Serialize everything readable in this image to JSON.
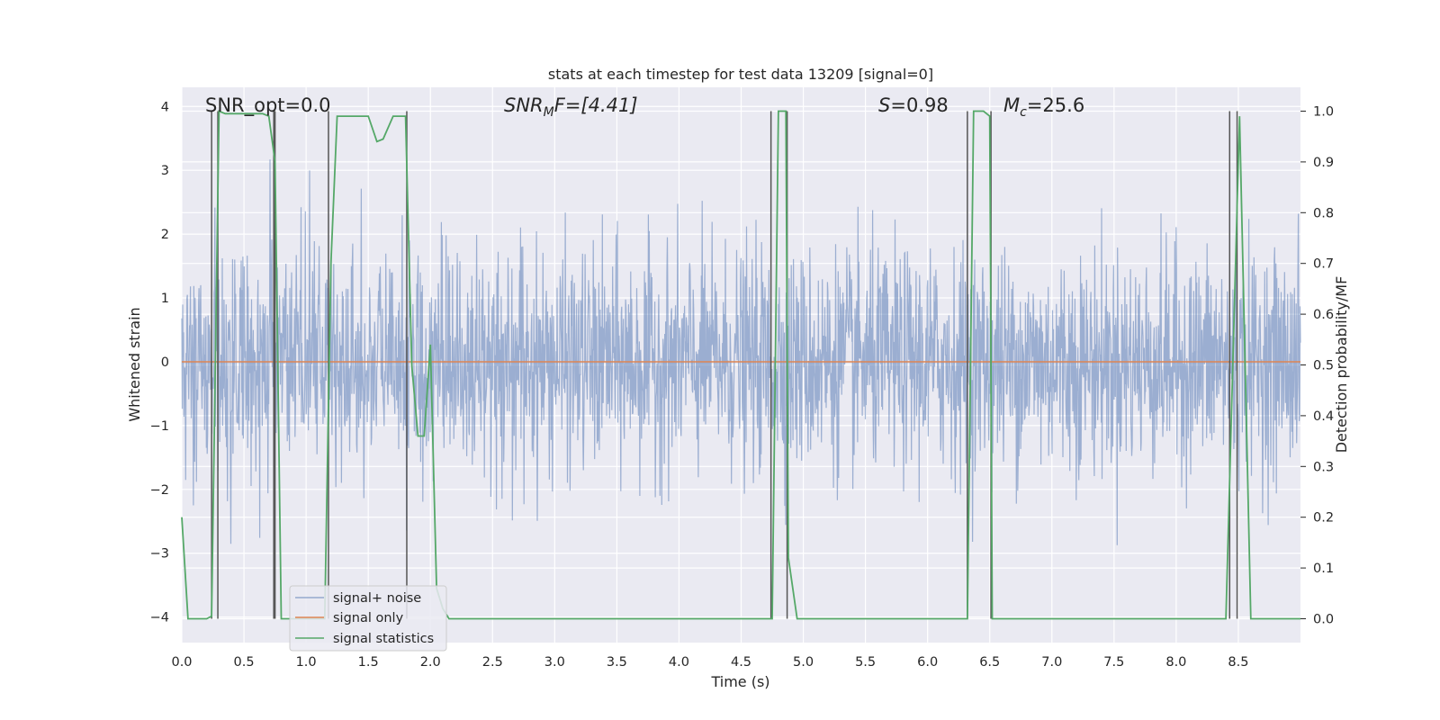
{
  "chart_data": {
    "type": "line",
    "title": "stats at each timestep for test data 13209 [signal=0]",
    "xlabel": "Time (s)",
    "ylabel": "Whitened strain",
    "y2label": "Detection probability/MF",
    "xlim": [
      0,
      9.0
    ],
    "ylim": [
      -4.4,
      4.3
    ],
    "y2lim": [
      -0.047,
      1.047
    ],
    "xticks": [
      0,
      0.5,
      1.0,
      1.5,
      2.0,
      2.5,
      3.0,
      3.5,
      4.0,
      4.5,
      5.0,
      5.5,
      6.0,
      6.5,
      7.0,
      7.5,
      8.0,
      8.5
    ],
    "xtick_labels": [
      "0.0",
      "0.5",
      "1.0",
      "1.5",
      "2.0",
      "2.5",
      "3.0",
      "3.5",
      "4.0",
      "4.5",
      "5.0",
      "5.5",
      "6.0",
      "6.5",
      "7.0",
      "7.5",
      "8.0",
      "8.5"
    ],
    "yticks": [
      -4,
      -3,
      -2,
      -1,
      0,
      1,
      2,
      3,
      4
    ],
    "ytick_labels": [
      "−4",
      "−3",
      "−2",
      "−1",
      "0",
      "1",
      "2",
      "3",
      "4"
    ],
    "y2ticks": [
      0.0,
      0.1,
      0.2,
      0.3,
      0.4,
      0.5,
      0.6,
      0.7,
      0.8,
      0.9,
      1.0
    ],
    "y2tick_labels": [
      "0.0",
      "0.1",
      "0.2",
      "0.3",
      "0.4",
      "0.5",
      "0.6",
      "0.7",
      "0.8",
      "0.9",
      "1.0"
    ],
    "grid": true,
    "legend_position": "lower-left",
    "annotations": [
      {
        "text": "SNR_opt=0.0",
        "x": 0.2,
        "y": 4.05
      },
      {
        "text": "SNR_M F=[4.41]",
        "x": 2.6,
        "y": 4.05
      },
      {
        "text": "S=0.98",
        "x": 5.6,
        "y": 4.05
      },
      {
        "text": "M_c=25.6",
        "x": 6.6,
        "y": 4.05
      }
    ],
    "annotation_parts": {
      "snr_opt": "SNR_opt=0.0",
      "snr_mf_a": "SNR",
      "snr_mf_sub": "M",
      "snr_mf_b": "F=[4.41]",
      "s_sym": "S",
      "s_val": "=0.98",
      "mc_sym": "M",
      "mc_sub": "c",
      "mc_val": "=25.6"
    },
    "series": [
      {
        "name": "signal+ noise",
        "color": "#4c72b0",
        "kind": "noise",
        "noise_std": 0.85,
        "t_start": 0,
        "t_end": 9.0
      },
      {
        "name": "signal only",
        "color": "#dd8452",
        "kind": "line",
        "x": [
          0,
          9.0
        ],
        "y": [
          0,
          0
        ]
      },
      {
        "name": "signal statistics",
        "color": "#55a868",
        "kind": "line",
        "axis": "right",
        "x": [
          0.0,
          0.05,
          0.1,
          0.2,
          0.24,
          0.3,
          0.35,
          0.5,
          0.65,
          0.7,
          0.75,
          0.8,
          0.87,
          1.0,
          1.15,
          1.2,
          1.25,
          1.5,
          1.57,
          1.62,
          1.7,
          1.75,
          1.8,
          1.85,
          1.9,
          1.95,
          2.0,
          2.05,
          2.1,
          2.15,
          4.5,
          4.75,
          4.8,
          4.86,
          4.88,
          4.95,
          5.0,
          6.0,
          6.32,
          6.37,
          6.45,
          6.5,
          6.52,
          6.6,
          8.0,
          8.4,
          8.51,
          8.6,
          9.0
        ],
        "y": [
          0.2,
          0.0,
          0.0,
          0.0,
          0.005,
          1.0,
          0.995,
          0.995,
          0.995,
          0.99,
          0.9,
          0.0,
          0.0,
          0.0,
          0.0,
          0.7,
          0.99,
          0.99,
          0.94,
          0.945,
          0.99,
          0.99,
          0.99,
          0.5,
          0.36,
          0.36,
          0.54,
          0.06,
          0.02,
          0.0,
          0.0,
          0.0,
          1.0,
          1.0,
          0.12,
          0.0,
          0.0,
          0.0,
          0.0,
          1.0,
          1.0,
          0.99,
          0.0,
          0.0,
          0.0,
          0.0,
          0.99,
          0.0,
          0.0
        ]
      }
    ],
    "vlines": [
      0.24,
      0.29,
      0.74,
      0.75,
      1.18,
      1.81,
      4.74,
      4.87,
      6.32,
      6.51,
      8.43,
      8.49
    ]
  }
}
